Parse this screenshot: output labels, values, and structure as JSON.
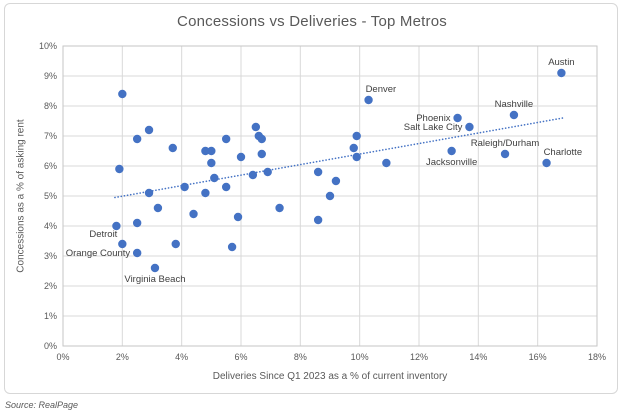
{
  "chart_data": {
    "type": "scatter",
    "title": "Concessions vs Deliveries - Top Metros",
    "xlabel": "Deliveries Since Q1 2023 as a % of current inventory",
    "ylabel": "Concessions as a % of asking rent",
    "xlim": [
      0,
      18
    ],
    "x_tick_step": 2,
    "ylim": [
      0,
      10
    ],
    "y_tick_step": 1,
    "tick_suffix": "%",
    "grid": true,
    "legend": "none",
    "point_color": "#4472c4",
    "grid_color": "#d9d9d9",
    "plot_border_color": "#c6c6c6",
    "tick_label_color": "#595959",
    "data_label_color": "#404040",
    "trendline": {
      "type": "linear",
      "style": "dotted",
      "color": "#4472c4",
      "x_start": 1.75,
      "y_start": 4.95,
      "x_end": 16.85,
      "y_end": 7.6
    },
    "labeled_points": [
      {
        "name": "Austin",
        "x": 16.8,
        "y": 9.1,
        "label_anchor": "above"
      },
      {
        "name": "Denver",
        "x": 10.3,
        "y": 8.2,
        "label_anchor": "above-right"
      },
      {
        "name": "Nashville",
        "x": 15.2,
        "y": 7.7,
        "label_anchor": "above"
      },
      {
        "name": "Phoenix",
        "x": 13.3,
        "y": 7.6,
        "label_anchor": "left"
      },
      {
        "name": "Salt Lake City",
        "x": 13.7,
        "y": 7.3,
        "label_anchor": "left"
      },
      {
        "name": "Jacksonville",
        "x": 13.1,
        "y": 6.5,
        "label_anchor": "below"
      },
      {
        "name": "Raleigh/Durham",
        "x": 14.9,
        "y": 6.4,
        "label_anchor": "above"
      },
      {
        "name": "Charlotte",
        "x": 16.3,
        "y": 6.1,
        "label_anchor": "above-right"
      },
      {
        "name": "Detroit",
        "x": 2.0,
        "y": 3.4,
        "label_anchor": "above-left"
      },
      {
        "name": "Orange County",
        "x": 2.5,
        "y": 3.1,
        "label_anchor": "left"
      },
      {
        "name": "Virginia Beach",
        "x": 3.1,
        "y": 2.6,
        "label_anchor": "below"
      }
    ],
    "unlabeled_points": [
      [
        2.0,
        8.4
      ],
      [
        2.9,
        7.2
      ],
      [
        6.5,
        7.3
      ],
      [
        2.5,
        6.9
      ],
      [
        5.5,
        6.9
      ],
      [
        6.6,
        7.0
      ],
      [
        6.7,
        6.9
      ],
      [
        9.9,
        7.0
      ],
      [
        3.7,
        6.6
      ],
      [
        4.8,
        6.5
      ],
      [
        5.0,
        6.5
      ],
      [
        6.7,
        6.4
      ],
      [
        9.8,
        6.6
      ],
      [
        5.0,
        6.1
      ],
      [
        6.0,
        6.3
      ],
      [
        9.9,
        6.3
      ],
      [
        10.9,
        6.1
      ],
      [
        1.9,
        5.9
      ],
      [
        5.1,
        5.6
      ],
      [
        6.4,
        5.7
      ],
      [
        6.9,
        5.8
      ],
      [
        8.6,
        5.8
      ],
      [
        9.2,
        5.5
      ],
      [
        4.1,
        5.3
      ],
      [
        5.5,
        5.3
      ],
      [
        2.9,
        5.1
      ],
      [
        4.8,
        5.1
      ],
      [
        9.0,
        5.0
      ],
      [
        3.2,
        4.6
      ],
      [
        4.4,
        4.4
      ],
      [
        7.3,
        4.6
      ],
      [
        1.8,
        4.0
      ],
      [
        2.5,
        4.1
      ],
      [
        5.9,
        4.3
      ],
      [
        8.6,
        4.2
      ],
      [
        3.8,
        3.4
      ],
      [
        5.7,
        3.3
      ]
    ]
  },
  "footer": {
    "source": "Source: RealPage"
  }
}
